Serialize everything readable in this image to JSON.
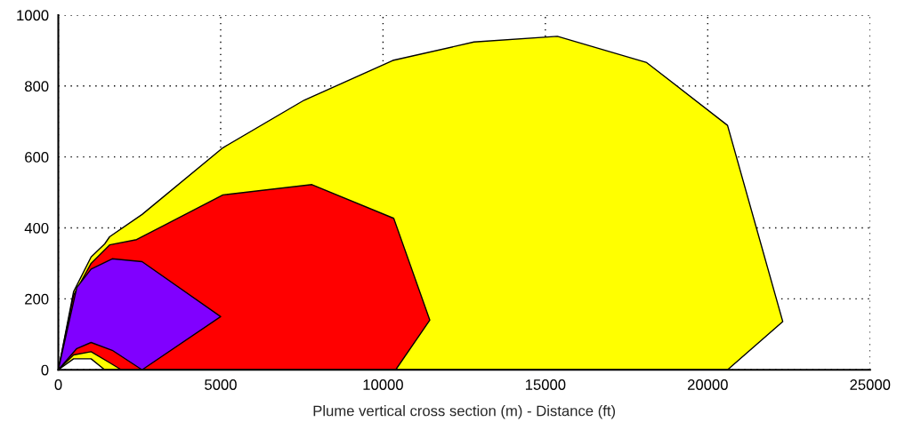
{
  "chart_data": {
    "type": "area",
    "xlabel": "Plume vertical cross section (m) - Distance (ft)",
    "xlim": [
      0,
      25000
    ],
    "ylim": [
      0,
      1000
    ],
    "xticks": [
      0,
      5000,
      10000,
      15000,
      20000,
      25000
    ],
    "yticks": [
      0,
      200,
      400,
      600,
      800,
      1000
    ],
    "grid": true,
    "series": [
      {
        "color": "#ffff00",
        "x": [
          0,
          470,
          1010,
          1430,
          1580,
          2580,
          5070,
          7570,
          10300,
          12800,
          15370,
          18120,
          20610,
          22310,
          20610,
          1430,
          1010,
          470
        ],
        "values": [
          0,
          220,
          318,
          355,
          375,
          438,
          626,
          760,
          872,
          924,
          940,
          866,
          689,
          136,
          0,
          0,
          31,
          31
        ]
      },
      {
        "color": "#ff0000",
        "x": [
          0,
          470,
          1010,
          1580,
          2410,
          5070,
          7810,
          10330,
          11440,
          10390,
          1940,
          1580,
          1010,
          470
        ],
        "values": [
          0,
          210,
          300,
          352,
          367,
          493,
          522,
          427,
          140,
          0,
          0,
          20,
          51,
          42
        ]
      },
      {
        "color": "#8000ff",
        "x": [
          0,
          570,
          1010,
          1660,
          2580,
          5000,
          2580,
          1660,
          1010,
          570
        ],
        "values": [
          0,
          232,
          284,
          313,
          305,
          150,
          0,
          55,
          77,
          60
        ]
      }
    ]
  }
}
